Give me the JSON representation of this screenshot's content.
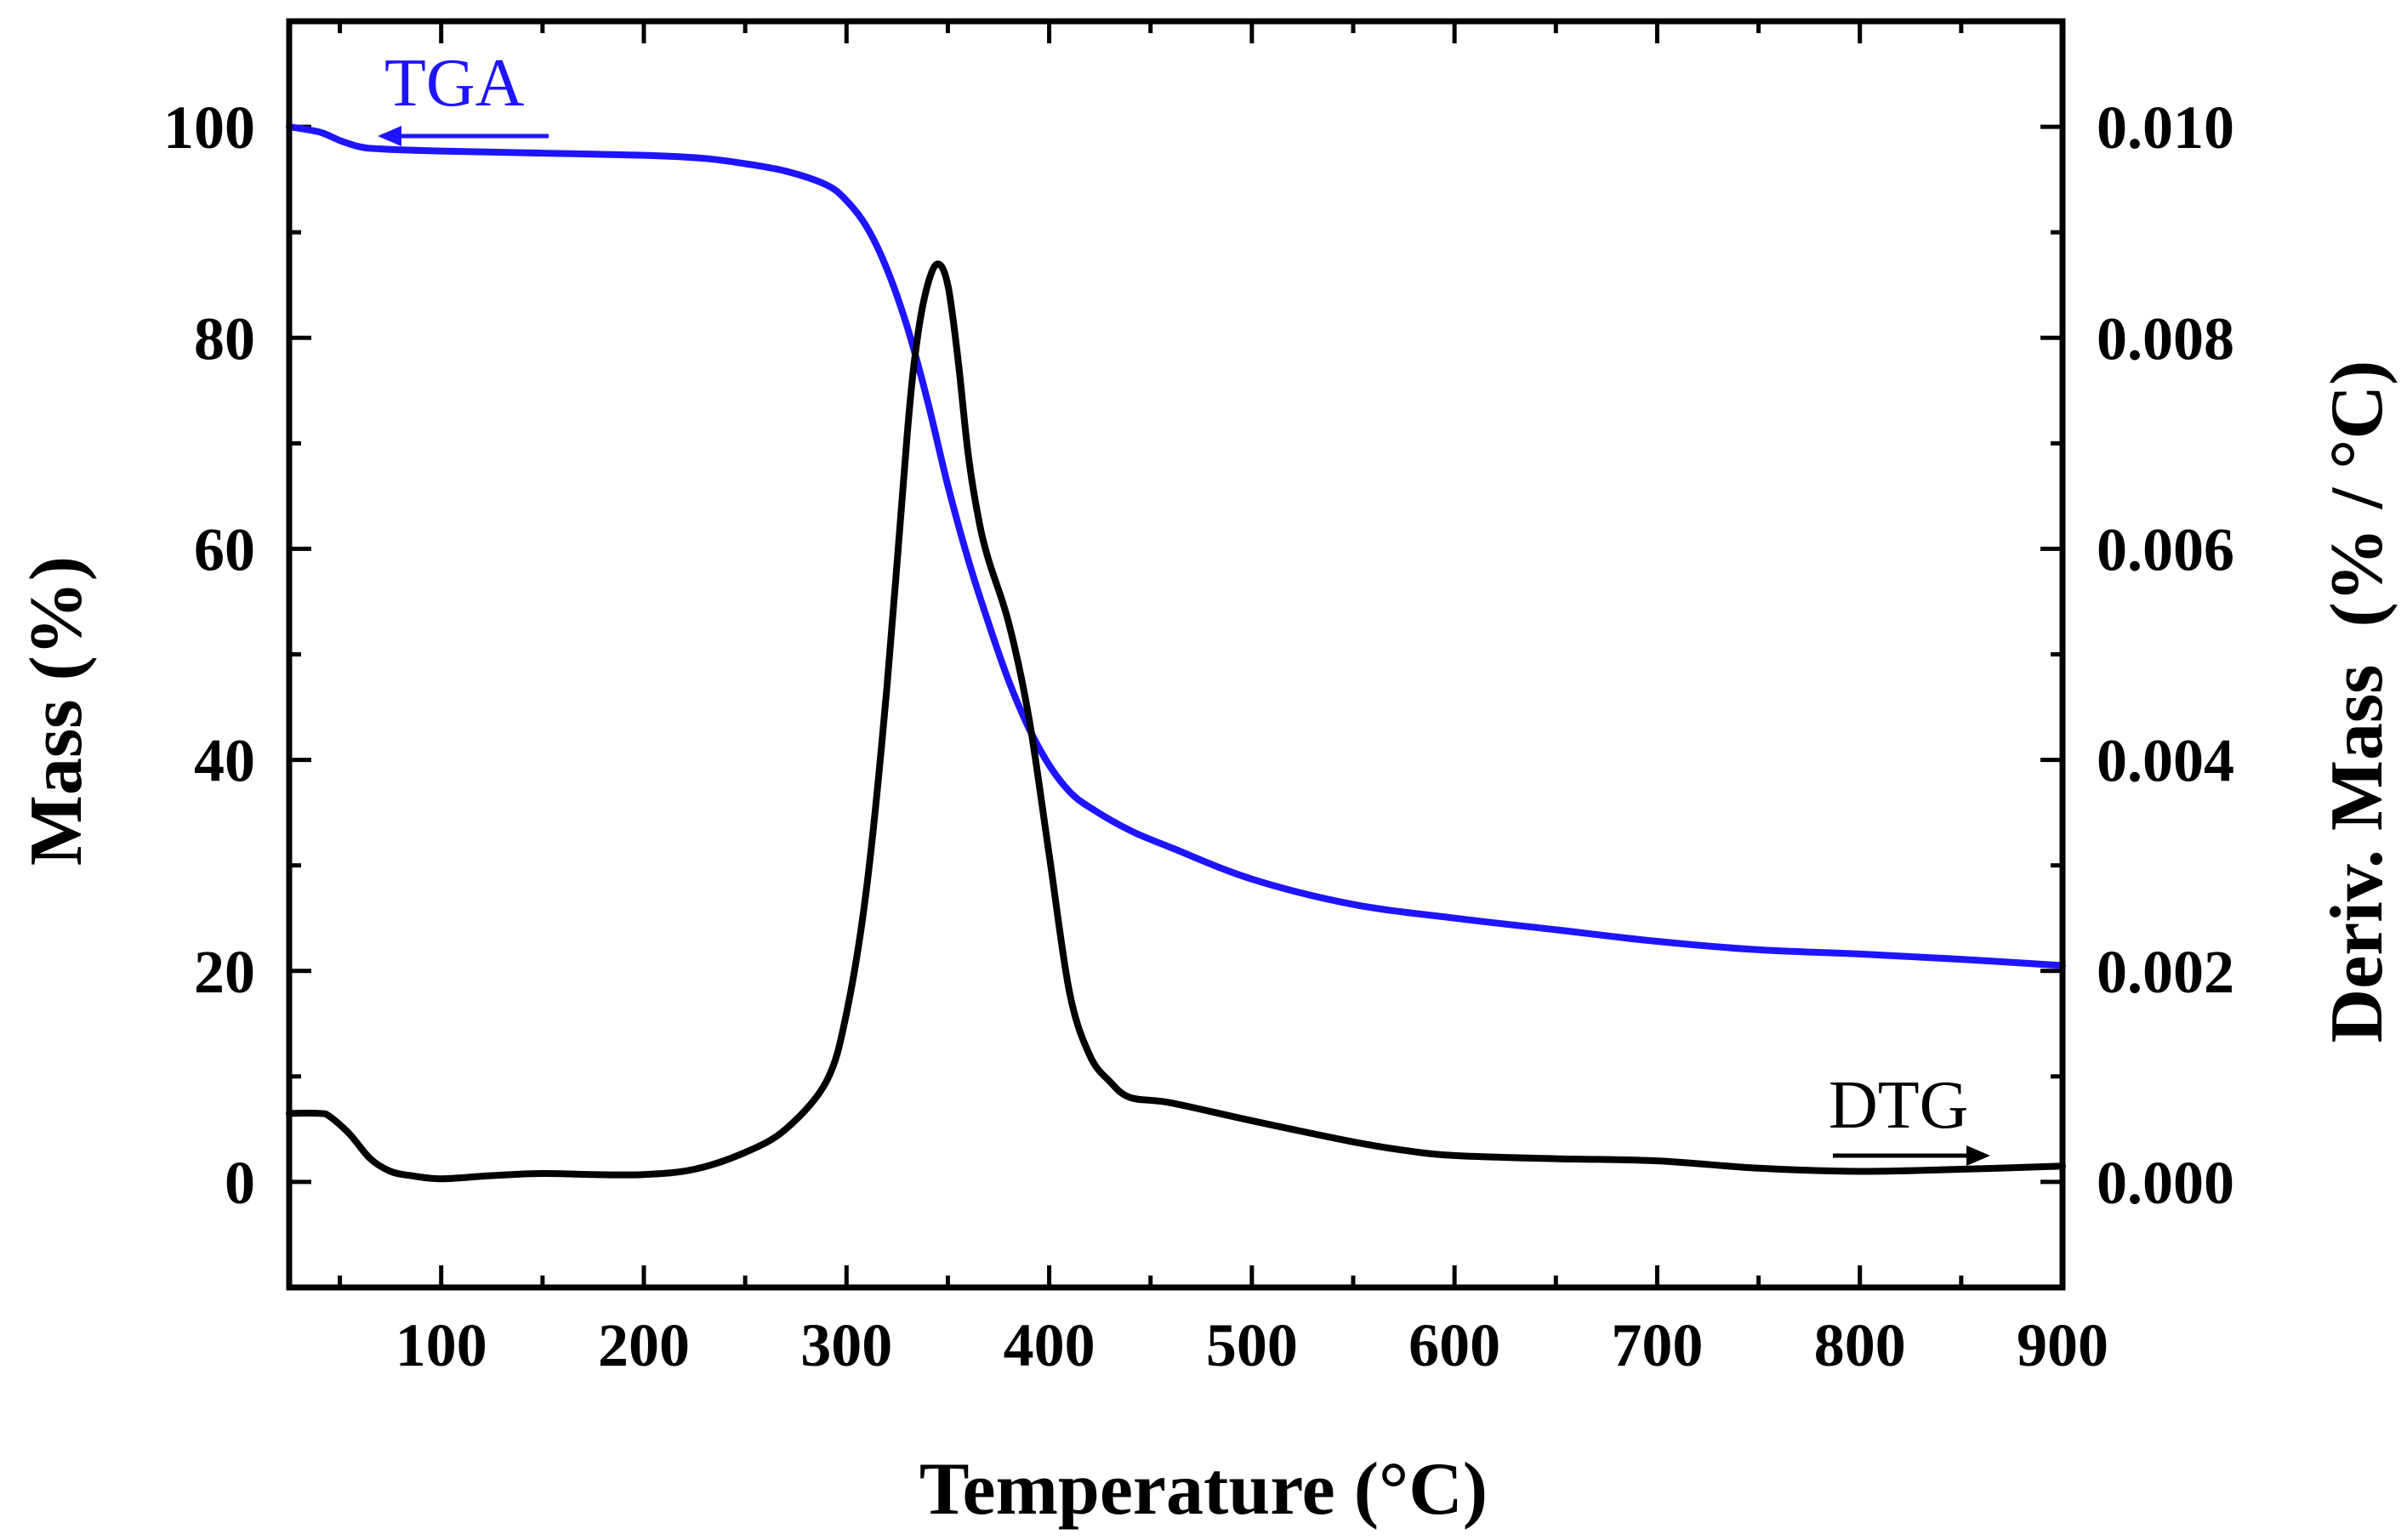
{
  "chart_data": {
    "type": "line",
    "title": "",
    "xlabel": "Temperature (°C)",
    "ylabel_left": "Mass (%)",
    "ylabel_right": "Deriv. Mass  (% / °C)",
    "xlim": [
      25,
      900
    ],
    "ylim_left": [
      -10,
      110
    ],
    "ylim_right": [
      -0.001,
      0.011
    ],
    "grid": false,
    "x_ticks": [
      100,
      200,
      300,
      400,
      500,
      600,
      700,
      800,
      900
    ],
    "x_tick_labels": [
      "100",
      "200",
      "300",
      "400",
      "500",
      "600",
      "700",
      "800",
      "900"
    ],
    "y_left_ticks": [
      0,
      20,
      40,
      60,
      80,
      100
    ],
    "y_left_tick_labels": [
      "0",
      "20",
      "40",
      "60",
      "80",
      "100"
    ],
    "y_right_ticks": [
      0.0,
      0.002,
      0.004,
      0.006,
      0.008,
      0.01
    ],
    "y_right_tick_labels": [
      "0.000",
      "0.002",
      "0.004",
      "0.006",
      "0.008",
      "0.010"
    ],
    "series": [
      {
        "name": "TGA",
        "axis": "left",
        "color": "#1f14ff",
        "x": [
          25,
          40,
          50,
          60,
          70,
          100,
          150,
          200,
          230,
          250,
          270,
          290,
          300,
          310,
          320,
          330,
          340,
          350,
          360,
          370,
          380,
          390,
          400,
          410,
          420,
          440,
          460,
          500,
          550,
          600,
          650,
          700,
          750,
          800,
          850,
          900
        ],
        "values": [
          100,
          99.5,
          98.7,
          98.1,
          97.9,
          97.7,
          97.5,
          97.3,
          97.0,
          96.5,
          95.8,
          94.5,
          93.0,
          90.5,
          86.5,
          81.0,
          74.0,
          66.0,
          59.0,
          53.0,
          47.5,
          43.0,
          39.5,
          37.0,
          35.5,
          33.3,
          31.7,
          28.7,
          26.3,
          25.0,
          23.9,
          22.8,
          22.0,
          21.6,
          21.1,
          20.5
        ]
      },
      {
        "name": "DTG",
        "axis": "right",
        "color": "#000000",
        "x": [
          25,
          40,
          45,
          55,
          65,
          75,
          85,
          100,
          125,
          150,
          175,
          200,
          225,
          250,
          270,
          290,
          300,
          310,
          320,
          330,
          335,
          340,
          345,
          350,
          355,
          360,
          365,
          370,
          380,
          390,
          400,
          410,
          420,
          430,
          440,
          460,
          500,
          550,
          575,
          600,
          650,
          700,
          750,
          800,
          850,
          900
        ],
        "values": [
          0.00065,
          0.00065,
          0.00062,
          0.00045,
          0.00022,
          0.0001,
          6e-05,
          3e-05,
          6e-05,
          8e-05,
          7e-05,
          7e-05,
          0.00012,
          0.00028,
          0.0005,
          0.00095,
          0.0016,
          0.0028,
          0.0047,
          0.0071,
          0.008,
          0.0085,
          0.0087,
          0.0085,
          0.0078,
          0.0069,
          0.0063,
          0.0059,
          0.0053,
          0.0044,
          0.0031,
          0.0018,
          0.0012,
          0.00095,
          0.0008,
          0.00075,
          0.00058,
          0.00038,
          0.0003,
          0.00025,
          0.00022,
          0.0002,
          0.00013,
          0.0001,
          0.00012,
          0.00015
        ]
      }
    ],
    "annotations": [
      {
        "text": "TGA",
        "color": "#1f14ff",
        "arrow": "left"
      },
      {
        "text": "DTG",
        "color": "#000000",
        "arrow": "right"
      }
    ]
  }
}
